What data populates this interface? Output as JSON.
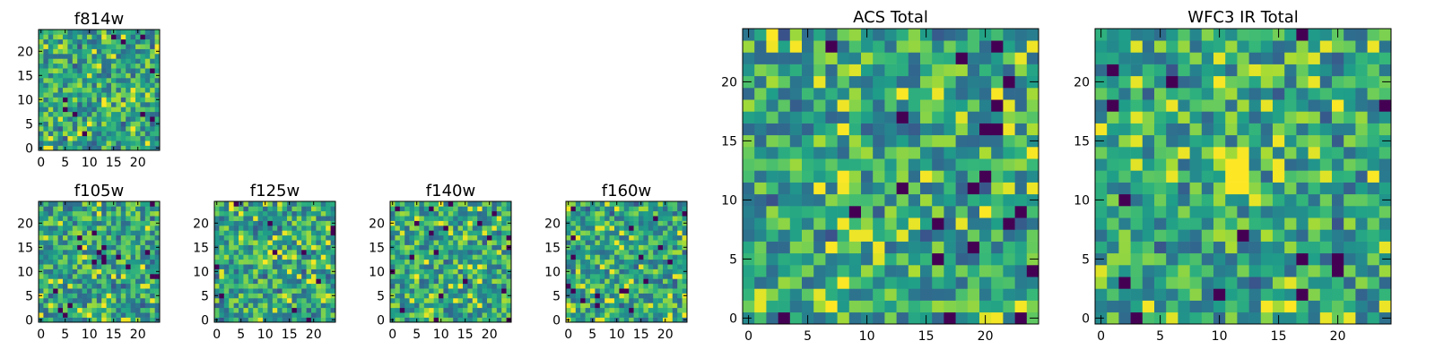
{
  "chart_data": [
    {
      "type": "heatmap",
      "title": "f814w",
      "size": 25,
      "xticks": [
        0,
        5,
        10,
        15,
        20
      ],
      "yticks": [
        0,
        5,
        10,
        15,
        20
      ],
      "colormap": "viridis",
      "seed": 11,
      "hot_spot": null
    },
    {
      "type": "heatmap",
      "title": "f105w",
      "size": 25,
      "xticks": [
        0,
        5,
        10,
        15,
        20
      ],
      "yticks": [
        0,
        5,
        10,
        15,
        20
      ],
      "colormap": "viridis",
      "seed": 23,
      "hot_spot": null
    },
    {
      "type": "heatmap",
      "title": "f125w",
      "size": 25,
      "xticks": [
        0,
        5,
        10,
        15,
        20
      ],
      "yticks": [
        0,
        5,
        10,
        15,
        20
      ],
      "colormap": "viridis",
      "seed": 37,
      "hot_spot": null
    },
    {
      "type": "heatmap",
      "title": "f140w",
      "size": 25,
      "xticks": [
        0,
        5,
        10,
        15,
        20
      ],
      "yticks": [
        0,
        5,
        10,
        15,
        20
      ],
      "colormap": "viridis",
      "seed": 41,
      "hot_spot": null
    },
    {
      "type": "heatmap",
      "title": "f160w",
      "size": 25,
      "xticks": [
        0,
        5,
        10,
        15,
        20
      ],
      "yticks": [
        0,
        5,
        10,
        15,
        20
      ],
      "colormap": "viridis",
      "seed": 53,
      "hot_spot": null
    },
    {
      "type": "heatmap",
      "title": "ACS Total",
      "size": 25,
      "xticks": [
        0,
        5,
        10,
        15,
        20
      ],
      "yticks": [
        0,
        5,
        10,
        15,
        20
      ],
      "colormap": "viridis",
      "seed": 67,
      "hot_spot": null
    },
    {
      "type": "heatmap",
      "title": "WFC3 IR Total",
      "size": 25,
      "xticks": [
        0,
        5,
        10,
        15,
        20
      ],
      "yticks": [
        0,
        5,
        10,
        15,
        20
      ],
      "colormap": "viridis",
      "seed": 79,
      "hot_spot": {
        "x": [
          11,
          12
        ],
        "y": [
          11,
          13
        ]
      }
    }
  ]
}
